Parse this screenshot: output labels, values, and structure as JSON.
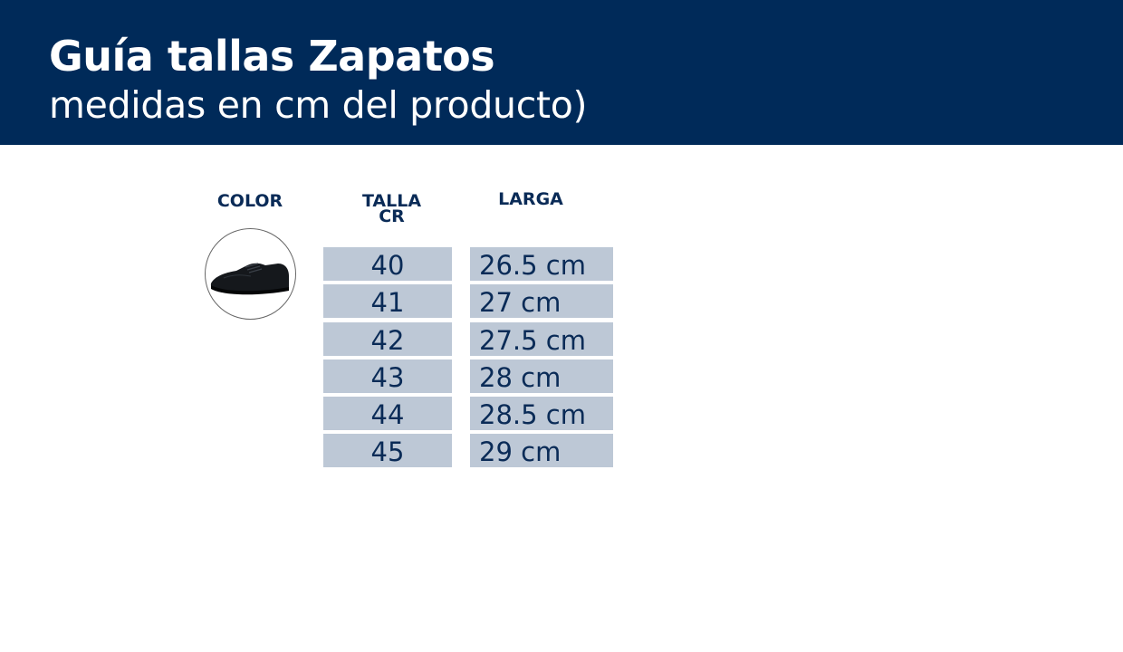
{
  "header": {
    "title": "Guía tallas Zapatos",
    "subtitle": "medidas en cm del producto)"
  },
  "columns": {
    "color": "COLOR",
    "talla_line1": "TALLA",
    "talla_line2": "CR",
    "larga": "LARGA"
  },
  "rows": [
    {
      "talla": "40",
      "larga": "26.5 cm"
    },
    {
      "talla": "41",
      "larga": "27 cm"
    },
    {
      "talla": "42",
      "larga": "27.5 cm"
    },
    {
      "talla": "43",
      "larga": "28 cm"
    },
    {
      "talla": "44",
      "larga": "28.5 cm"
    },
    {
      "talla": "45",
      "larga": "29 cm"
    }
  ],
  "colors": {
    "header": "#002a59",
    "cell": "#bdc8d6",
    "text": "#0a2b57"
  },
  "product_image": "black-lace-up-shoe"
}
